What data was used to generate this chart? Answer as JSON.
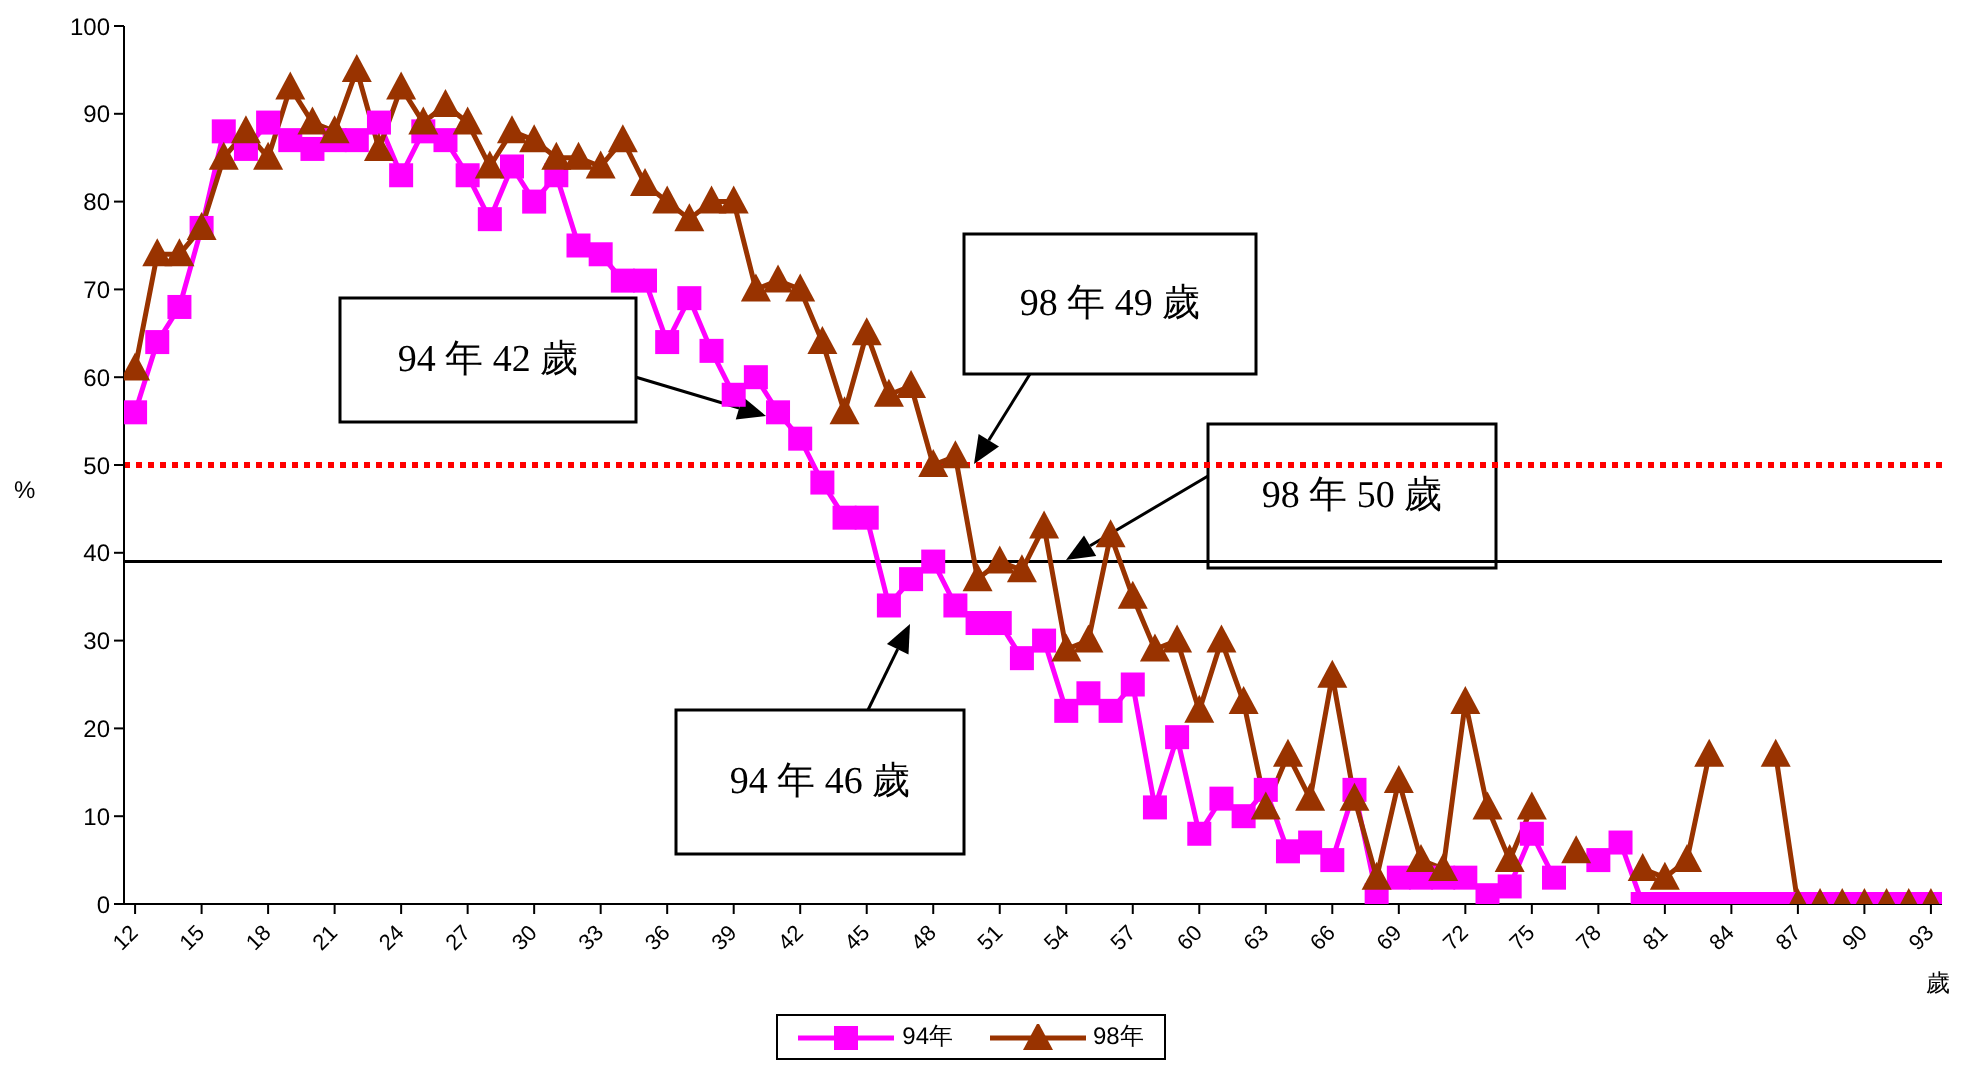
{
  "chart_data": {
    "type": "line",
    "ylabel": "%",
    "xlabel": "歲",
    "x": [
      12,
      13,
      14,
      15,
      16,
      17,
      18,
      19,
      20,
      21,
      22,
      23,
      24,
      25,
      26,
      27,
      28,
      29,
      30,
      31,
      32,
      33,
      34,
      35,
      36,
      37,
      38,
      39,
      40,
      41,
      42,
      43,
      44,
      45,
      46,
      47,
      48,
      49,
      50,
      51,
      52,
      53,
      54,
      55,
      56,
      57,
      58,
      59,
      60,
      61,
      62,
      63,
      64,
      65,
      66,
      67,
      68,
      69,
      70,
      71,
      72,
      73,
      74,
      75,
      76,
      77,
      78,
      79,
      80,
      81,
      82,
      83,
      84,
      85,
      86,
      87,
      88,
      89,
      90,
      91,
      92,
      93
    ],
    "xlim": [
      11.5,
      93.5
    ],
    "xticks": [
      12,
      15,
      18,
      21,
      24,
      27,
      30,
      33,
      36,
      39,
      42,
      45,
      48,
      51,
      54,
      57,
      60,
      63,
      66,
      69,
      72,
      75,
      78,
      81,
      84,
      87,
      90,
      93
    ],
    "ylim": [
      0,
      100
    ],
    "yticks": [
      0,
      10,
      20,
      30,
      40,
      50,
      60,
      70,
      80,
      90,
      100
    ],
    "grid": false,
    "legend": "bottom",
    "series": [
      {
        "name": "94年",
        "color": "#ff00ff",
        "marker": "square",
        "values": [
          56,
          64,
          68,
          77,
          88,
          86,
          89,
          87,
          86,
          87,
          87,
          89,
          83,
          88,
          87,
          83,
          78,
          84,
          80,
          83,
          75,
          74,
          71,
          71,
          64,
          69,
          63,
          58,
          60,
          56,
          53,
          48,
          44,
          44,
          34,
          37,
          39,
          34,
          32,
          32,
          28,
          30,
          22,
          24,
          22,
          25,
          11,
          19,
          8,
          12,
          10,
          13,
          6,
          7,
          5,
          13,
          1,
          3,
          3,
          3,
          3,
          1,
          2,
          8,
          3,
          null,
          5,
          7,
          0,
          0,
          0,
          0,
          0,
          0,
          0,
          0,
          0,
          0,
          0,
          0,
          0,
          0
        ]
      },
      {
        "name": "98年",
        "color": "#993300",
        "marker": "triangle",
        "values": [
          61,
          74,
          74,
          77,
          85,
          88,
          85,
          93,
          89,
          88,
          95,
          86,
          93,
          89,
          91,
          89,
          84,
          88,
          87,
          85,
          85,
          84,
          87,
          82,
          80,
          78,
          80,
          80,
          70,
          71,
          70,
          64,
          56,
          65,
          58,
          59,
          50,
          51,
          37,
          39,
          38,
          43,
          29,
          30,
          42,
          35,
          29,
          30,
          22,
          30,
          23,
          11,
          17,
          12,
          26,
          12,
          3,
          14,
          5,
          4,
          23,
          11,
          5,
          11,
          null,
          6,
          null,
          null,
          4,
          3,
          5,
          17,
          null,
          null,
          17,
          0,
          0,
          0,
          0,
          0,
          0,
          0
        ]
      }
    ],
    "ref_lines": [
      {
        "axis": "y",
        "value": 50,
        "color": "#ff0000",
        "line_style": "dotted"
      },
      {
        "axis": "y",
        "value": 39,
        "color": "#000000",
        "line_style": "solid"
      }
    ],
    "annotations": [
      "94 年 42 歲",
      "98 年 49 歲",
      "98 年 50 歲",
      "94 年 46 歲"
    ]
  }
}
